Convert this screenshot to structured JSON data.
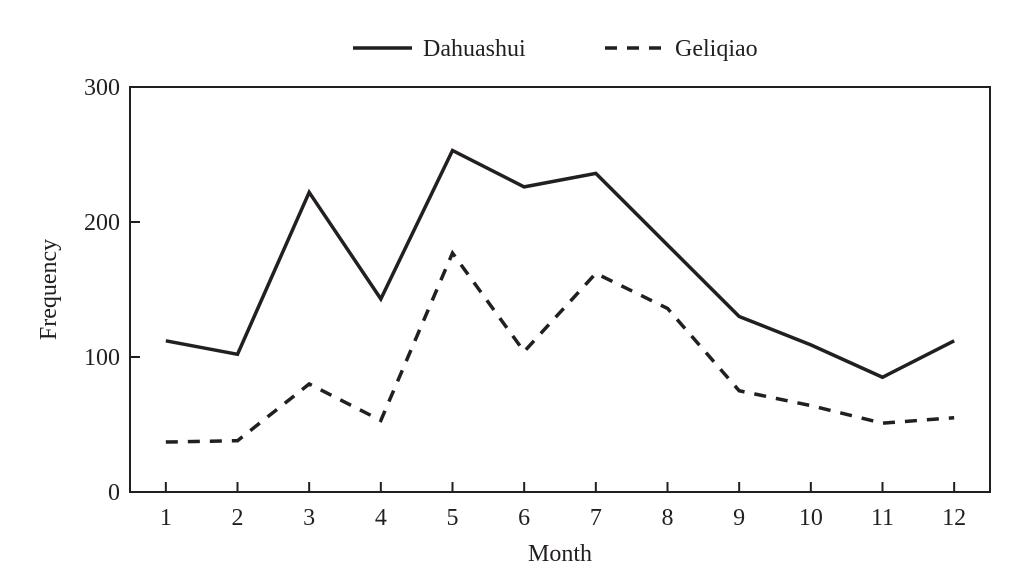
{
  "chart_data": {
    "type": "line",
    "title": "",
    "xlabel": "Month",
    "ylabel": "Frequency",
    "x": [
      1,
      2,
      3,
      4,
      5,
      6,
      7,
      8,
      9,
      10,
      11,
      12
    ],
    "xtick_labels": [
      "1",
      "2",
      "3",
      "4",
      "5",
      "6",
      "7",
      "8",
      "9",
      "10",
      "11",
      "12"
    ],
    "yticks": [
      0,
      100,
      200,
      300
    ],
    "ytick_labels": [
      "0",
      "100",
      "200",
      "300"
    ],
    "xlim": [
      0.5,
      12.5
    ],
    "ylim": [
      0,
      300
    ],
    "grid": false,
    "legend_position": "top-center",
    "series": [
      {
        "name": "Dahuashui",
        "style": "solid",
        "color": "#231f20",
        "values": [
          112,
          102,
          222,
          143,
          253,
          226,
          236,
          183,
          130,
          109,
          85,
          112
        ]
      },
      {
        "name": "Geliqiao",
        "style": "dashed",
        "color": "#231f20",
        "values": [
          37,
          38,
          80,
          53,
          177,
          104,
          162,
          136,
          75,
          64,
          51,
          55
        ]
      }
    ]
  }
}
